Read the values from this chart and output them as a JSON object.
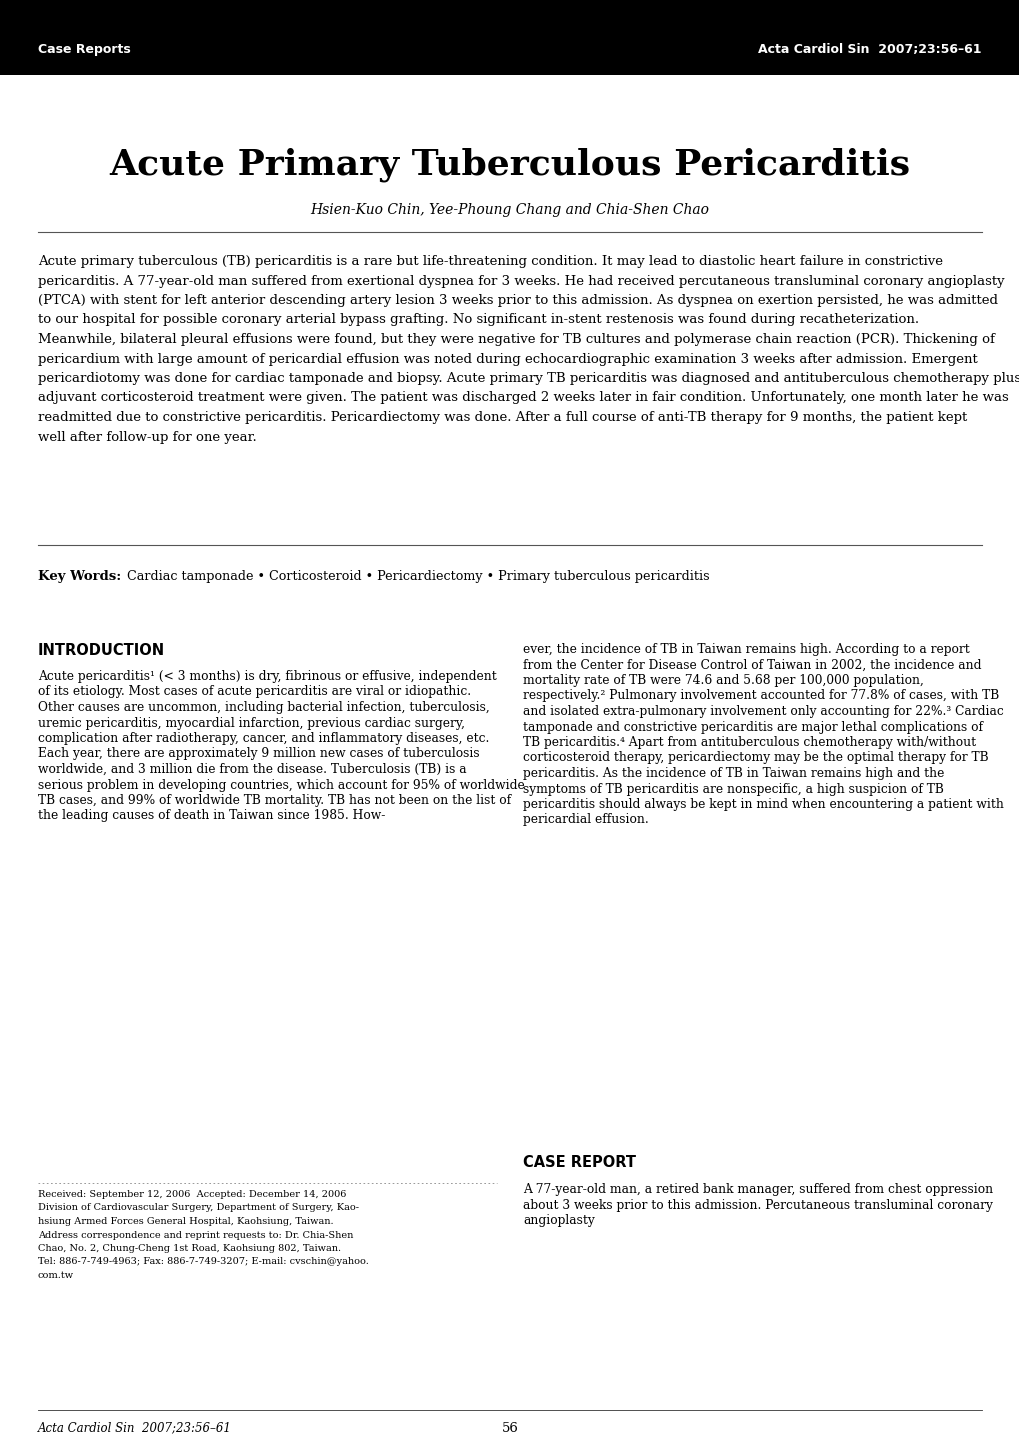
{
  "title": "Acute Primary Tuberculous Pericarditis",
  "authors": "Hsien-Kuo Chin, Yee-Phoung Chang and Chia-Shen Chao",
  "header_left": "Case Reports",
  "header_right": "Acta Cardiol Sin  2007;23:56–61",
  "footer_left": "Acta Cardiol Sin  2007;23:56–61",
  "footer_center": "56",
  "abstract": "Acute primary tuberculous (TB) pericarditis is a rare but life-threatening condition. It may lead to diastolic heart failure in constrictive pericarditis. A 77-year-old man suffered from exertional dyspnea for 3 weeks. He had received percutaneous transluminal coronary angioplasty (PTCA) with stent for left anterior descending artery lesion 3 weeks prior to this admission. As dyspnea on exertion persisted, he was admitted to our hospital for possible coronary arterial bypass grafting. No significant in-stent restenosis was found during recatheterization. Meanwhile, bilateral pleural effusions were found, but they were negative for TB cultures and polymerase chain reaction (PCR). Thickening of pericardium with large amount of pericardial effusion was noted during echocardiographic examination 3 weeks after admission. Emergent pericardiotomy was done for cardiac tamponade and biopsy. Acute primary TB pericarditis was diagnosed and antituberculous chemotherapy plus adjuvant corticosteroid treatment were given. The patient was discharged 2 weeks later in fair condition. Unfortunately, one month later he was readmitted due to constrictive pericarditis. Pericardiectomy was done. After a full course of anti-TB therapy for 9 months, the patient kept well after follow-up for one year.",
  "keywords_label": "Key Words:",
  "keywords": "   Cardiac tamponade • Corticosteroid • Pericardiectomy • Primary tuberculous pericarditis",
  "section1_title": "INTRODUCTION",
  "section1_indent": "    Acute pericarditis¹ (< 3 months) is dry, fibrinous or effusive, independent of its etiology. Most cases of acute pericarditis are viral or idiopathic. Other causes are uncommon, including bacterial infection, tuberculosis, uremic pericarditis, myocardial infarction, previous cardiac surgery, complication after radiotherapy, cancer, and inflammatory diseases, etc. Each year, there are approximately 9 million new cases of tuberculosis worldwide, and 3 million die from the disease. Tuberculosis (TB) is a serious problem in developing countries, which account for 95% of worldwide TB cases, and 99% of worldwide TB mortality. TB has not been on the list of the leading causes of death in Taiwan since 1985. How-",
  "section1_col2": "ever, the incidence of TB in Taiwan remains high. According to a report from the Center for Disease Control of Taiwan in 2002, the incidence and mortality rate of TB were 74.6 and 5.68 per 100,000 population, respectively.² Pulmonary involvement accounted for 77.8% of cases, with TB and isolated extra-pulmonary involvement only accounting for 22%.³ Cardiac tamponade and constrictive pericarditis are major lethal complications of TB pericarditis.⁴ Apart from antituberculous chemotherapy with/without corticosteroid therapy, pericardiectomy may be the optimal therapy for TB pericarditis. As the incidence of TB in Taiwan remains high and the symptoms of TB pericarditis are nonspecific, a high suspicion of TB pericarditis should always be kept in mind when encountering a patient with pericardial effusion.",
  "footnote_line1": "Received: September 12, 2006  Accepted: December 14, 2006",
  "footnote_line2": "Division of Cardiovascular Surgery, Department of Surgery, Kao-",
  "footnote_line3": "hsiung Armed Forces General Hospital, Kaohsiung, Taiwan.",
  "footnote_line4": "Address correspondence and reprint requests to: Dr. Chia-Shen",
  "footnote_line5": "Chao, No. 2, Chung-Cheng 1st Road, Kaohsiung 802, Taiwan.",
  "footnote_line6": "Tel: 886-7-749-4963; Fax: 886-7-749-3207; E-mail: cvschin@yahoo.",
  "footnote_line7": "com.tw",
  "section2_title": "CASE REPORT",
  "section2_text": "    A 77-year-old man, a retired bank manager, suffered from chest oppression about 3 weeks prior to this admission. Percutaneous transluminal coronary angioplasty",
  "bg_color": "#ffffff",
  "text_color": "#000000",
  "header_bg": "#000000",
  "header_text_color": "#ffffff"
}
